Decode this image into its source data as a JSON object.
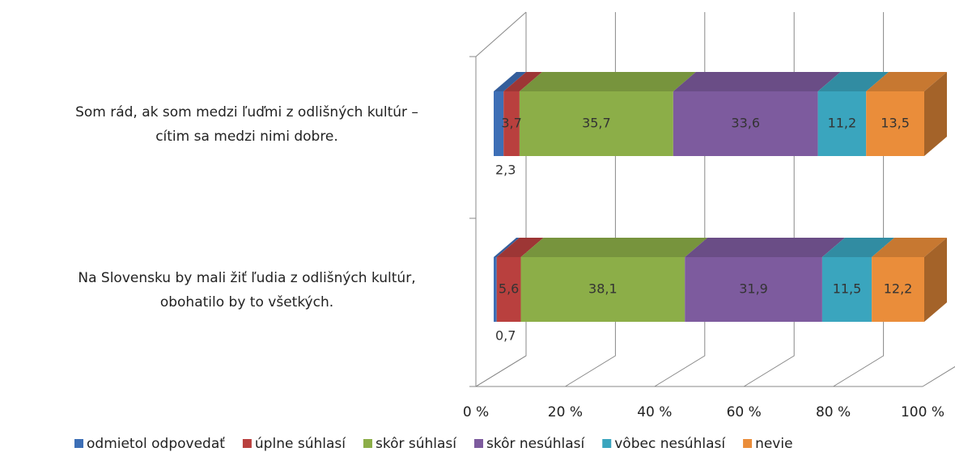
{
  "chart_data": {
    "type": "bar3d_stacked_horizontal",
    "categories": [
      [
        "Som rád, ak som medzi ľuďmi z odlišných kultúr –",
        "cítim sa medzi nimi dobre."
      ],
      [
        "Na Slovensku by mali žiť ľudia z odlišných kultúr,",
        "obohatilo by to všetkých."
      ]
    ],
    "series": [
      {
        "name": "odmietol odpovedať",
        "color": "#3d6fb6",
        "values": [
          2.3,
          0.7
        ],
        "value_labels": [
          "2,3",
          "0,7"
        ]
      },
      {
        "name": "úplne súhlasí",
        "color": "#b9403e",
        "values": [
          3.7,
          5.6
        ],
        "value_labels": [
          "3,7",
          "5,6"
        ]
      },
      {
        "name": "skôr súhlasí",
        "color": "#8cae48",
        "values": [
          35.7,
          38.1
        ],
        "value_labels": [
          "35,7",
          "38,1"
        ]
      },
      {
        "name": "skôr nesúhlasí",
        "color": "#7d5b9e",
        "values": [
          33.6,
          31.9
        ],
        "value_labels": [
          "33,6",
          "31,9"
        ]
      },
      {
        "name": "vôbec nesúhlasí",
        "color": "#3aa5be",
        "values": [
          11.2,
          11.5
        ],
        "value_labels": [
          "11,2",
          "11,5"
        ]
      },
      {
        "name": "nevie",
        "color": "#ea8d3a",
        "values": [
          13.5,
          12.2
        ],
        "value_labels": [
          "13,5",
          "12,2"
        ]
      }
    ],
    "xlim": [
      0,
      100
    ],
    "xticks": [
      {
        "value": 0,
        "label": "0 %"
      },
      {
        "value": 20,
        "label": "20 %"
      },
      {
        "value": 40,
        "label": "40 %"
      },
      {
        "value": 60,
        "label": "60 %"
      },
      {
        "value": 80,
        "label": "80 %"
      },
      {
        "value": 100,
        "label": "100 %"
      }
    ],
    "grid": true
  }
}
